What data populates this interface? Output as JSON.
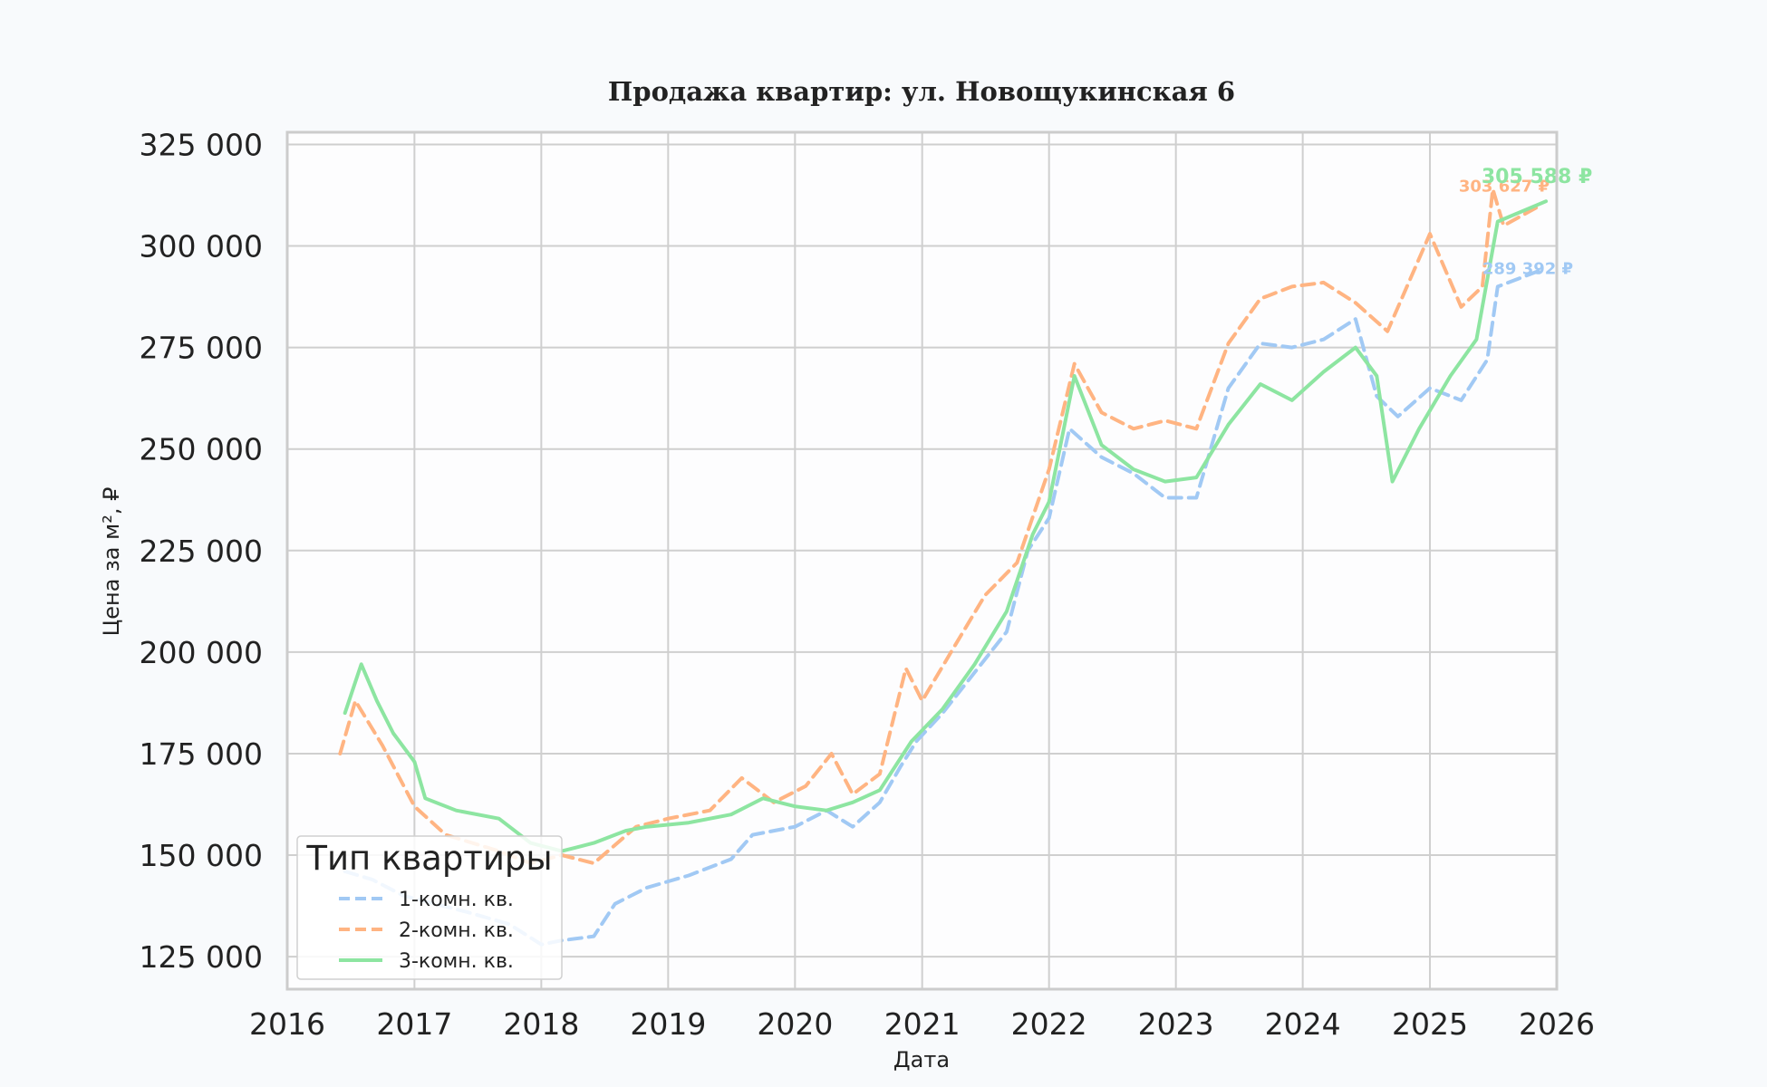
{
  "chart_data": {
    "type": "line",
    "title": "Продажа квартир: ул. Новощукинская 6",
    "xlabel": "Дата",
    "ylabel": "Цена за м², ₽",
    "xlim": [
      "2016-01-01",
      "2026-01-01"
    ],
    "ylim": [
      117000,
      328000
    ],
    "x_ticks": [
      "2016",
      "2017",
      "2018",
      "2019",
      "2020",
      "2021",
      "2022",
      "2023",
      "2024",
      "2025",
      "2026"
    ],
    "y_ticks": [
      125000,
      150000,
      175000,
      200000,
      225000,
      250000,
      275000,
      300000,
      325000
    ],
    "y_tick_labels": [
      "125 000",
      "150 000",
      "175 000",
      "200 000",
      "225 000",
      "250 000",
      "275 000",
      "300 000",
      "325 000"
    ],
    "grid": true,
    "legend": {
      "title": "Тип квартиры",
      "position": "lower-left"
    },
    "series": [
      {
        "name": "1-комн. кв.",
        "color": "#a1c9f4",
        "style": "dashed",
        "end_label": "289 392 ₽",
        "points": [
          [
            "2016-06-15",
            146000
          ],
          [
            "2016-09-01",
            144000
          ],
          [
            "2016-12-01",
            140000
          ],
          [
            "2017-03-01",
            138000
          ],
          [
            "2017-06-01",
            136000
          ],
          [
            "2017-10-01",
            133000
          ],
          [
            "2018-01-01",
            128000
          ],
          [
            "2018-03-01",
            129000
          ],
          [
            "2018-06-01",
            130000
          ],
          [
            "2018-08-01",
            138000
          ],
          [
            "2018-11-01",
            142000
          ],
          [
            "2019-03-01",
            145000
          ],
          [
            "2019-07-01",
            149000
          ],
          [
            "2019-09-01",
            155000
          ],
          [
            "2020-01-01",
            157000
          ],
          [
            "2020-04-01",
            161000
          ],
          [
            "2020-06-15",
            157000
          ],
          [
            "2020-09-01",
            163000
          ],
          [
            "2020-11-01",
            172000
          ],
          [
            "2020-12-15",
            178000
          ],
          [
            "2021-03-01",
            185000
          ],
          [
            "2021-06-01",
            195000
          ],
          [
            "2021-09-01",
            205000
          ],
          [
            "2021-11-01",
            225000
          ],
          [
            "2022-01-01",
            233000
          ],
          [
            "2022-03-01",
            255000
          ],
          [
            "2022-06-01",
            248000
          ],
          [
            "2022-09-01",
            244000
          ],
          [
            "2022-12-01",
            238000
          ],
          [
            "2023-03-01",
            238000
          ],
          [
            "2023-06-01",
            265000
          ],
          [
            "2023-09-01",
            276000
          ],
          [
            "2023-12-01",
            275000
          ],
          [
            "2024-03-01",
            277000
          ],
          [
            "2024-06-01",
            282000
          ],
          [
            "2024-08-01",
            263000
          ],
          [
            "2024-10-01",
            258000
          ],
          [
            "2025-01-01",
            265000
          ],
          [
            "2025-04-01",
            262000
          ],
          [
            "2025-06-15",
            272000
          ],
          [
            "2025-07-15",
            290000
          ],
          [
            "2025-11-15",
            294000
          ]
        ]
      },
      {
        "name": "2-комн. кв.",
        "color": "#ffb482",
        "style": "dashed",
        "end_label": "303 627 ₽",
        "points": [
          [
            "2016-06-01",
            175000
          ],
          [
            "2016-07-15",
            188000
          ],
          [
            "2016-10-01",
            177000
          ],
          [
            "2017-01-01",
            162000
          ],
          [
            "2017-04-01",
            155000
          ],
          [
            "2017-09-01",
            151000
          ],
          [
            "2017-12-01",
            148000
          ],
          [
            "2018-03-01",
            150000
          ],
          [
            "2018-06-01",
            148000
          ],
          [
            "2018-10-01",
            157000
          ],
          [
            "2019-01-01",
            159000
          ],
          [
            "2019-05-01",
            161000
          ],
          [
            "2019-08-01",
            169000
          ],
          [
            "2019-11-01",
            163000
          ],
          [
            "2020-02-01",
            167000
          ],
          [
            "2020-04-15",
            175000
          ],
          [
            "2020-06-15",
            165000
          ],
          [
            "2020-09-01",
            170000
          ],
          [
            "2020-11-15",
            196000
          ],
          [
            "2021-01-01",
            188000
          ],
          [
            "2021-04-01",
            201000
          ],
          [
            "2021-07-01",
            214000
          ],
          [
            "2021-10-01",
            222000
          ],
          [
            "2022-01-01",
            245000
          ],
          [
            "2022-03-15",
            271000
          ],
          [
            "2022-06-01",
            259000
          ],
          [
            "2022-09-01",
            255000
          ],
          [
            "2022-12-01",
            257000
          ],
          [
            "2023-03-01",
            255000
          ],
          [
            "2023-06-01",
            276000
          ],
          [
            "2023-09-01",
            287000
          ],
          [
            "2023-12-01",
            290000
          ],
          [
            "2024-03-01",
            291000
          ],
          [
            "2024-06-01",
            286000
          ],
          [
            "2024-09-01",
            279000
          ],
          [
            "2025-01-01",
            303000
          ],
          [
            "2025-04-01",
            285000
          ],
          [
            "2025-06-01",
            290000
          ],
          [
            "2025-07-01",
            314000
          ],
          [
            "2025-08-01",
            305000
          ],
          [
            "2025-11-15",
            310000
          ]
        ]
      },
      {
        "name": "3-комн. кв.",
        "color": "#8de5a1",
        "style": "solid",
        "end_label": "305 588 ₽",
        "points": [
          [
            "2016-06-15",
            185000
          ],
          [
            "2016-08-01",
            197000
          ],
          [
            "2016-09-15",
            188000
          ],
          [
            "2016-11-01",
            180000
          ],
          [
            "2017-01-01",
            173000
          ],
          [
            "2017-02-01",
            164000
          ],
          [
            "2017-05-01",
            161000
          ],
          [
            "2017-09-01",
            159000
          ],
          [
            "2017-12-01",
            153000
          ],
          [
            "2018-03-01",
            151000
          ],
          [
            "2018-06-01",
            153000
          ],
          [
            "2018-09-01",
            156000
          ],
          [
            "2018-11-01",
            157000
          ],
          [
            "2019-03-01",
            158000
          ],
          [
            "2019-07-01",
            160000
          ],
          [
            "2019-10-01",
            164000
          ],
          [
            "2020-01-01",
            162000
          ],
          [
            "2020-04-01",
            161000
          ],
          [
            "2020-06-15",
            163000
          ],
          [
            "2020-09-01",
            166000
          ],
          [
            "2020-12-01",
            178000
          ],
          [
            "2021-03-01",
            186000
          ],
          [
            "2021-06-01",
            197000
          ],
          [
            "2021-09-01",
            210000
          ],
          [
            "2021-11-15",
            229000
          ],
          [
            "2022-01-01",
            237000
          ],
          [
            "2022-03-15",
            268000
          ],
          [
            "2022-06-01",
            251000
          ],
          [
            "2022-09-01",
            245000
          ],
          [
            "2022-12-01",
            242000
          ],
          [
            "2023-03-01",
            243000
          ],
          [
            "2023-06-01",
            256000
          ],
          [
            "2023-09-01",
            266000
          ],
          [
            "2023-12-01",
            262000
          ],
          [
            "2024-03-01",
            269000
          ],
          [
            "2024-06-01",
            275000
          ],
          [
            "2024-08-01",
            268000
          ],
          [
            "2024-09-15",
            242000
          ],
          [
            "2024-12-01",
            255000
          ],
          [
            "2025-03-01",
            268000
          ],
          [
            "2025-05-15",
            277000
          ],
          [
            "2025-07-15",
            306000
          ],
          [
            "2025-12-01",
            311000
          ]
        ]
      }
    ]
  }
}
